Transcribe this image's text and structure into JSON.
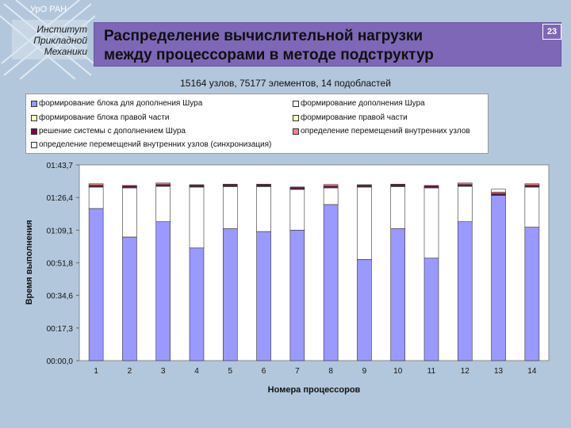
{
  "header": {
    "org": "УрО РАН",
    "institute": [
      "Институт",
      "Прикладной",
      "Механики"
    ],
    "title_line1": "Распределение вычислительной нагрузки",
    "title_line2": "между процессорами в методе подструктур",
    "page_number": "23"
  },
  "subtitle": "15164 узлов, 75177 элементов, 14 подобластей",
  "colors": {
    "background": "#b2c7dc",
    "title_box": "#7d67b6",
    "plot_area": "#ffffff",
    "gridline": "#c0c0c0"
  },
  "chart_data": {
    "type": "bar",
    "stacked": true,
    "title": "",
    "xlabel": "Номера процессоров",
    "ylabel": "Время выполнения",
    "y_unit": "seconds",
    "ylim": [
      0,
      103.7
    ],
    "y_ticks": [
      0,
      17.3,
      34.6,
      51.8,
      69.1,
      86.4,
      103.7
    ],
    "y_tick_labels": [
      "00:00,0",
      "00:17,3",
      "00:34,6",
      "00:51,8",
      "01:09,1",
      "01:26,4",
      "01:43,7"
    ],
    "grid": false,
    "legend_position": "top",
    "categories": [
      "1",
      "2",
      "3",
      "4",
      "5",
      "6",
      "7",
      "8",
      "9",
      "10",
      "11",
      "12",
      "13",
      "14"
    ],
    "series": [
      {
        "name": "формирование блока для дополнения Шура",
        "color": "#9999ff",
        "values": [
          80.6,
          65.5,
          73.6,
          59.7,
          69.9,
          68.4,
          69.1,
          82.7,
          53.6,
          69.9,
          54.3,
          73.6,
          87.5,
          70.7
        ]
      },
      {
        "name": "формирование дополнения Шура",
        "color": "#ffffff",
        "values": [
          11.3,
          26.0,
          18.7,
          32.2,
          22.3,
          23.8,
          21.6,
          8.8,
          38.3,
          22.3,
          37.2,
          18.7,
          0.0,
          21.2
        ]
      },
      {
        "name": "формирование блока правой части",
        "color": "#ffffff",
        "values": [
          0.2,
          0.2,
          0.2,
          0.2,
          0.2,
          0.2,
          0.2,
          0.2,
          0.2,
          0.2,
          0.2,
          0.2,
          0.2,
          0.2
        ]
      },
      {
        "name": "формирование правой части",
        "color": "#ffffc0",
        "values": [
          0.2,
          0.2,
          0.2,
          0.2,
          0.2,
          0.2,
          0.2,
          0.2,
          0.2,
          0.2,
          0.2,
          0.2,
          0.2,
          0.2
        ]
      },
      {
        "name": "решение системы с дополнением Шура",
        "color": "#800050",
        "values": [
          0.6,
          0.6,
          0.6,
          0.6,
          0.6,
          0.6,
          0.6,
          0.6,
          0.6,
          0.6,
          0.6,
          0.6,
          0.6,
          0.6
        ]
      },
      {
        "name": "определение перемещений внутренних узлов",
        "color": "#ff8080",
        "values": [
          0.8,
          0.3,
          0.8,
          0.3,
          0.3,
          0.3,
          0.3,
          0.8,
          0.3,
          0.3,
          0.3,
          0.8,
          0.8,
          0.8
        ]
      },
      {
        "name": "определение перемещений внутренних узлов (синхронизация)",
        "color": "#ffffff",
        "values": [
          0.0,
          0.0,
          0.0,
          0.0,
          0.0,
          0.0,
          0.0,
          0.0,
          0.0,
          0.0,
          0.0,
          0.0,
          1.5,
          0.0
        ]
      }
    ]
  }
}
